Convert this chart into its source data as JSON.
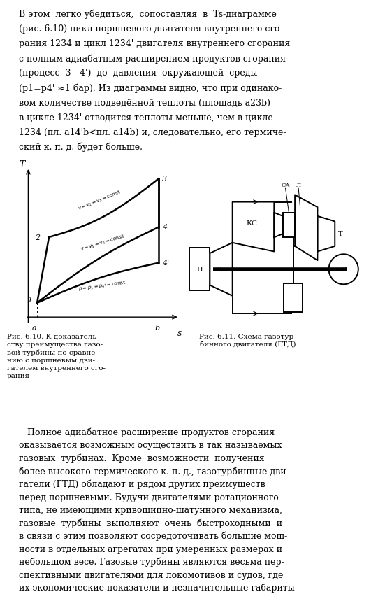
{
  "background": "#ffffff",
  "top_lines": [
    "В этом  легко убедиться,  сопоставляя  в  Ts-диаграмме",
    "(рис. 6.10) цикл поршневого двигателя внутреннего сго-",
    "рания 1234 и цикл 1234' двигателя внутреннего сгорания",
    "с полным адиабатным расширением продуктов сгорания",
    "(процесс  3—4')  до  давления  окружающей  среды",
    "(p1=p4' ≈1 бар). Из диаграммы видно, что при одинако-",
    "вом количестве подведённой теплоты (площадь a23b)",
    "в цикле 1234' отводится теплоты меньше, чем в цикле",
    "1234 (пл. a14'b<пл. a14b) и, следовательно, его термиче-",
    "ский к. п. д. будет больше."
  ],
  "bottom_lines": [
    "   Полное адиабатное расширение продуктов сгорания",
    "оказывается возможным осуществить в так называемых",
    "газовых  турбинах.  Кроме  возможности  получения",
    "более высокого термического к. п. д., газотурбинные дви-",
    "гатели (ГТД) обладают и рядом других преимуществ",
    "перед поршневыми. Будучи двигателями ротационного",
    "типа, не имеющими кривошипно-шатунного механизма,",
    "газовые  турбины  выполняют  очень  быстроходными  и",
    "в связи с этим позволяют сосредоточивать большие мощ-",
    "ности в отдельных агрегатах при умеренных размерах и",
    "небольшом весе. Газовые турбины являются весьма пер-",
    "спективными двигателями для локомотивов и судов, где",
    "их экономические показатели и незначительные габариты"
  ],
  "fig610_caption": "Рис. 6.10. К доказатель-\nству преимущества газо-\nвой турбины по сравне-\nнию с поршневым дви-\nгателем внутреннего сго-\nрания",
  "fig611_caption": "Рис. 6.11. Схема газотур-\nбинного двигателя (ГТД)",
  "text_fontsize": 9.0,
  "caption_fontsize": 7.5
}
